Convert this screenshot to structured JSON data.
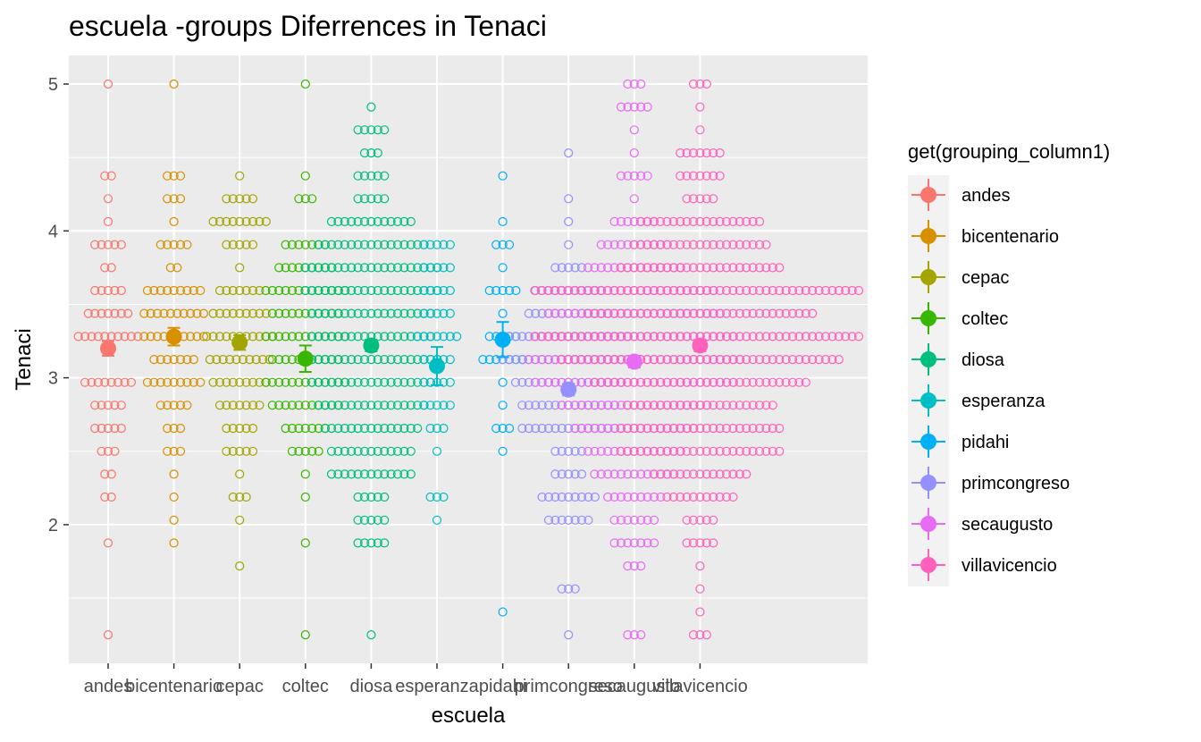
{
  "chart_data": {
    "type": "scatter",
    "title": "escuela -groups Diferrences in  Tenaci",
    "xlabel": "escuela",
    "ylabel": "Tenaci",
    "categories": [
      "andes",
      "bicentenario",
      "cepac",
      "coltec",
      "diosa",
      "esperanza",
      "pidahi",
      "primcongreso",
      "secaugusto",
      "villavicencio"
    ],
    "ylim": [
      1.1,
      5.2
    ],
    "yticks": [
      2,
      3,
      4,
      5
    ],
    "grid": true,
    "legend_title": "get(grouping_column1)",
    "legend_position": "right",
    "colors": [
      "#F8766D",
      "#D89000",
      "#A3A500",
      "#39B600",
      "#00BF7D",
      "#00BFC4",
      "#00B0F6",
      "#9590FF",
      "#E76BF3",
      "#FF62BC"
    ],
    "means": [
      3.2,
      3.28,
      3.24,
      3.13,
      3.22,
      3.08,
      3.26,
      2.92,
      3.11,
      3.22
    ],
    "errors": [
      0.05,
      0.06,
      0.05,
      0.09,
      0.04,
      0.13,
      0.12,
      0.04,
      0.04,
      0.04
    ],
    "points": [
      [
        [
          5,
          1
        ],
        [
          4.375,
          2
        ],
        [
          4.219,
          1
        ],
        [
          4.063,
          1
        ],
        [
          3.906,
          5
        ],
        [
          3.75,
          2
        ],
        [
          3.594,
          5
        ],
        [
          3.438,
          7
        ],
        [
          3.281,
          10
        ],
        [
          3.125,
          0
        ],
        [
          2.969,
          8
        ],
        [
          2.813,
          5
        ],
        [
          2.656,
          5
        ],
        [
          2.5,
          3
        ],
        [
          2.344,
          2
        ],
        [
          2.188,
          2
        ],
        [
          1.875,
          1
        ],
        [
          1.25,
          1
        ]
      ],
      [
        [
          5,
          1
        ],
        [
          4.375,
          3
        ],
        [
          4.219,
          3
        ],
        [
          4.063,
          1
        ],
        [
          3.906,
          5
        ],
        [
          3.75,
          2
        ],
        [
          3.594,
          9
        ],
        [
          3.438,
          10
        ],
        [
          3.281,
          10
        ],
        [
          3.125,
          7
        ],
        [
          2.969,
          9
        ],
        [
          2.813,
          5
        ],
        [
          2.656,
          3
        ],
        [
          2.5,
          3
        ],
        [
          2.344,
          1
        ],
        [
          2.188,
          1
        ],
        [
          2.031,
          1
        ],
        [
          1.875,
          1
        ]
      ],
      [
        [
          4.375,
          1
        ],
        [
          4.219,
          5
        ],
        [
          4.063,
          9
        ],
        [
          3.906,
          5
        ],
        [
          3.75,
          1
        ],
        [
          3.594,
          7
        ],
        [
          3.438,
          9
        ],
        [
          3.281,
          11
        ],
        [
          3.125,
          10
        ],
        [
          2.969,
          9
        ],
        [
          2.813,
          7
        ],
        [
          2.656,
          5
        ],
        [
          2.5,
          5
        ],
        [
          2.344,
          1
        ],
        [
          2.188,
          3
        ],
        [
          2.031,
          1
        ],
        [
          1.719,
          1
        ]
      ],
      [
        [
          5,
          1
        ],
        [
          4.375,
          1
        ],
        [
          4.219,
          3
        ],
        [
          3.906,
          7
        ],
        [
          3.75,
          9
        ],
        [
          3.594,
          13
        ],
        [
          3.438,
          11
        ],
        [
          3.281,
          13
        ],
        [
          3.125,
          11
        ],
        [
          2.969,
          13
        ],
        [
          2.813,
          11
        ],
        [
          2.656,
          7
        ],
        [
          2.5,
          5
        ],
        [
          2.344,
          1
        ],
        [
          2.188,
          1
        ],
        [
          1.875,
          1
        ],
        [
          1.25,
          1
        ]
      ],
      [
        [
          4.844,
          1
        ],
        [
          4.688,
          5
        ],
        [
          4.531,
          3
        ],
        [
          4.375,
          5
        ],
        [
          4.219,
          5
        ],
        [
          4.063,
          13
        ],
        [
          3.906,
          17
        ],
        [
          3.75,
          21
        ],
        [
          3.594,
          21
        ],
        [
          3.438,
          19
        ],
        [
          3.281,
          19
        ],
        [
          3.125,
          21
        ],
        [
          2.969,
          19
        ],
        [
          2.813,
          17
        ],
        [
          2.656,
          15
        ],
        [
          2.5,
          13
        ],
        [
          2.344,
          13
        ],
        [
          2.188,
          5
        ],
        [
          2.031,
          5
        ],
        [
          1.875,
          5
        ],
        [
          1.25,
          1
        ]
      ],
      [
        [
          3.906,
          5
        ],
        [
          3.75,
          5
        ],
        [
          3.594,
          5
        ],
        [
          3.438,
          5
        ],
        [
          3.281,
          7
        ],
        [
          3.125,
          5
        ],
        [
          2.969,
          5
        ],
        [
          2.813,
          5
        ],
        [
          2.656,
          3
        ],
        [
          2.5,
          1
        ],
        [
          2.188,
          3
        ],
        [
          2.031,
          1
        ]
      ],
      [
        [
          4.375,
          1
        ],
        [
          4.063,
          1
        ],
        [
          3.906,
          3
        ],
        [
          3.75,
          1
        ],
        [
          3.594,
          5
        ],
        [
          3.438,
          1
        ],
        [
          3.281,
          5
        ],
        [
          3.125,
          7
        ],
        [
          2.969,
          1
        ],
        [
          2.813,
          1
        ],
        [
          2.656,
          3
        ],
        [
          2.5,
          1
        ],
        [
          1.406,
          1
        ]
      ],
      [
        [
          4.531,
          1
        ],
        [
          4.219,
          1
        ],
        [
          4.063,
          1
        ],
        [
          3.906,
          1
        ],
        [
          3.75,
          5
        ],
        [
          3.594,
          11
        ],
        [
          3.438,
          13
        ],
        [
          3.281,
          19
        ],
        [
          3.125,
          21
        ],
        [
          2.969,
          17
        ],
        [
          2.813,
          15
        ],
        [
          2.656,
          15
        ],
        [
          2.5,
          5
        ],
        [
          2.344,
          5
        ],
        [
          2.188,
          9
        ],
        [
          2.031,
          7
        ],
        [
          1.563,
          3
        ],
        [
          1.25,
          1
        ]
      ],
      [
        [
          5,
          3
        ],
        [
          4.844,
          5
        ],
        [
          4.688,
          1
        ],
        [
          4.531,
          1
        ],
        [
          4.375,
          5
        ],
        [
          4.219,
          1
        ],
        [
          4.063,
          7
        ],
        [
          3.906,
          11
        ],
        [
          3.75,
          15
        ],
        [
          3.594,
          25
        ],
        [
          3.438,
          27
        ],
        [
          3.281,
          31
        ],
        [
          3.125,
          33
        ],
        [
          2.969,
          31
        ],
        [
          2.813,
          23
        ],
        [
          2.656,
          19
        ],
        [
          2.5,
          15
        ],
        [
          2.344,
          13
        ],
        [
          2.188,
          9
        ],
        [
          2.031,
          7
        ],
        [
          1.875,
          7
        ],
        [
          1.719,
          3
        ],
        [
          1.25,
          3
        ]
      ],
      [
        [
          5,
          3
        ],
        [
          4.844,
          1
        ],
        [
          4.688,
          1
        ],
        [
          4.531,
          7
        ],
        [
          4.375,
          7
        ],
        [
          4.219,
          5
        ],
        [
          4.063,
          19
        ],
        [
          3.906,
          21
        ],
        [
          3.75,
          25
        ],
        [
          3.594,
          51
        ],
        [
          3.438,
          35
        ],
        [
          3.281,
          51
        ],
        [
          3.125,
          43
        ],
        [
          2.969,
          33
        ],
        [
          2.813,
          23
        ],
        [
          2.656,
          25
        ],
        [
          2.5,
          25
        ],
        [
          2.344,
          15
        ],
        [
          2.188,
          11
        ],
        [
          2.031,
          5
        ],
        [
          1.875,
          5
        ],
        [
          1.719,
          1
        ],
        [
          1.563,
          1
        ],
        [
          1.406,
          1
        ],
        [
          1.25,
          3
        ]
      ]
    ]
  }
}
